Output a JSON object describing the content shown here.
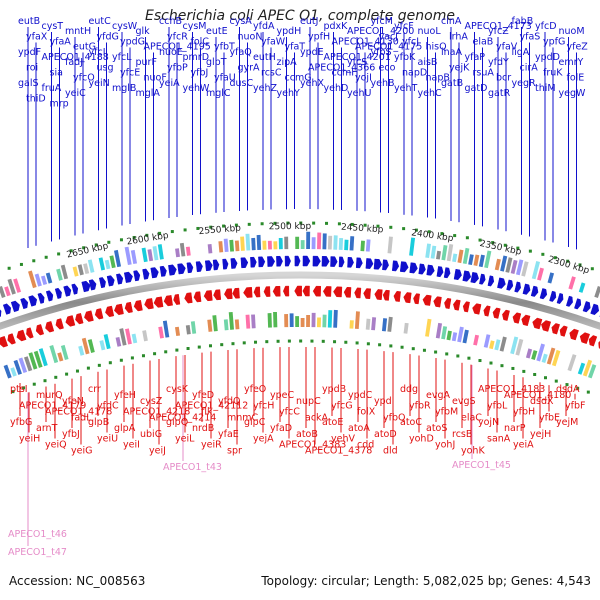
{
  "title": "Escherichia coli APEC O1, complete genome",
  "footer": {
    "accession": "Accession: NC_008563",
    "summary": "Topology: circular; Length: 5,082,025 bp; Genes: 4,543"
  },
  "colors": {
    "forward": "#1010cc",
    "reverse": "#e01010",
    "rna": "#e58cc8",
    "backbone": "#8a8a8a",
    "tick_marks": "#2a8a2a"
  },
  "scale_labels": [
    "2650 kbp",
    "2600 kbp",
    "2550 kbp",
    "2500 kbp",
    "2450 kbp",
    "2400 kbp",
    "2350 kbp",
    "2300 kbp"
  ],
  "forward_genes": [
    "eutB",
    "cysT",
    "mntH",
    "eutC",
    "cysW",
    "glk",
    "cchB",
    "cysM",
    "eutE",
    "cysA",
    "yfdA",
    "ypdH",
    "eutJ",
    "pdxK",
    "APECO1_4200",
    "yfcM",
    "yfcF",
    "nuoL",
    "cinA",
    "APECO1_4173",
    "yfcZ",
    "fabB",
    "yfcD",
    "nuoM",
    "yfaX",
    "yfaA",
    "eutG",
    "yfdG",
    "ypdG",
    "APECO1_4195",
    "yfcR",
    "folC",
    "yfbT",
    "nuoN",
    "yfaW",
    "yfaT",
    "ypfH",
    "APECO1_4130",
    "APECO1_4175",
    "vacJ",
    "yfcJ",
    "hisQ",
    "lrhA",
    "elaB",
    "yfaV",
    "yfaS",
    "ypfG",
    "yfeZ",
    "ypdF",
    "APECO1_4188",
    "fadJ",
    "yfcI",
    "yfcL",
    "purF",
    "nuoE",
    "pmrD",
    "glpT",
    "yfaQ",
    "eutH",
    "zipA",
    "ypdE",
    "APECO1_4201",
    "yfcS",
    "yfbS",
    "yfbK",
    "aisB",
    "inaA",
    "yfaP",
    "yfdY",
    "ligA",
    "ypdD",
    "emrY",
    "roi",
    "sia",
    "yfcO",
    "usg",
    "yfcE",
    "nuoF",
    "yfbP",
    "yfbJ",
    "yfaU",
    "gyrA",
    "rcsC",
    "ccmG",
    "APECO1_4366",
    "ccmH",
    "yojI",
    "eco",
    "napD",
    "napB",
    "yejK",
    "rsuA",
    "bcr",
    "cirA",
    "fruK",
    "folE",
    "galS",
    "fruA",
    "yeiC",
    "yeiN",
    "mglB",
    "mglA",
    "yeiA",
    "yehW",
    "mglC",
    "dusC",
    "yehZ",
    "yehY",
    "yehX",
    "yehD",
    "yehU",
    "yehB",
    "yehT",
    "yehC",
    "gatB",
    "gatD",
    "gatR",
    "yegR",
    "thiM",
    "yegW",
    "thiD",
    "mrp"
  ],
  "reverse_genes": [
    "ptsI",
    "murQ",
    "yfeN",
    "crr",
    "yfeH",
    "cysZ",
    "cysK",
    "yfeD",
    "yfdQ",
    "yfeO",
    "ypeC",
    "nupC",
    "ypdB",
    "ypdC",
    "ypdI",
    "ddg",
    "evgA",
    "evgS",
    "APECO1_4183",
    "APECO1_4180",
    "dsdX",
    "dsdA",
    "APECO1_4179",
    "APECO1_4178",
    "fadL",
    "yfdC",
    "APECO1_4218",
    "APECO1_4214",
    "APECO1_42112",
    "flk",
    "mnmC",
    "yfcH",
    "yfcC",
    "ackA",
    "yfcG",
    "folX",
    "yfbQ",
    "yfbR",
    "yfbM",
    "elaC",
    "yfbL",
    "yfbH",
    "yfbE",
    "yfbF",
    "yfbG",
    "arnT",
    "yfbJ",
    "glpB",
    "glpA",
    "ubiG",
    "glpQ",
    "nrdB",
    "yfaE",
    "glpC",
    "yfaD",
    "atoB",
    "atoE",
    "atoA",
    "atoD",
    "atoC",
    "atoS",
    "rcsB",
    "yojN",
    "narP",
    "yejH",
    "yejM",
    "yeiH",
    "yeiQ",
    "yeiG",
    "yeiU",
    "yeiI",
    "yeiJ",
    "yeiL",
    "yeiR",
    "spr",
    "yejA",
    "APECO1_4383",
    "APECO1_4378",
    "yehV",
    "cdd",
    "dld",
    "yohD",
    "yohJ",
    "yohK",
    "sanA",
    "yeiA"
  ],
  "rna_genes": [
    "APECO1_t46",
    "APECO1_t47",
    "APECO1_t43",
    "APECO1_t45"
  ]
}
